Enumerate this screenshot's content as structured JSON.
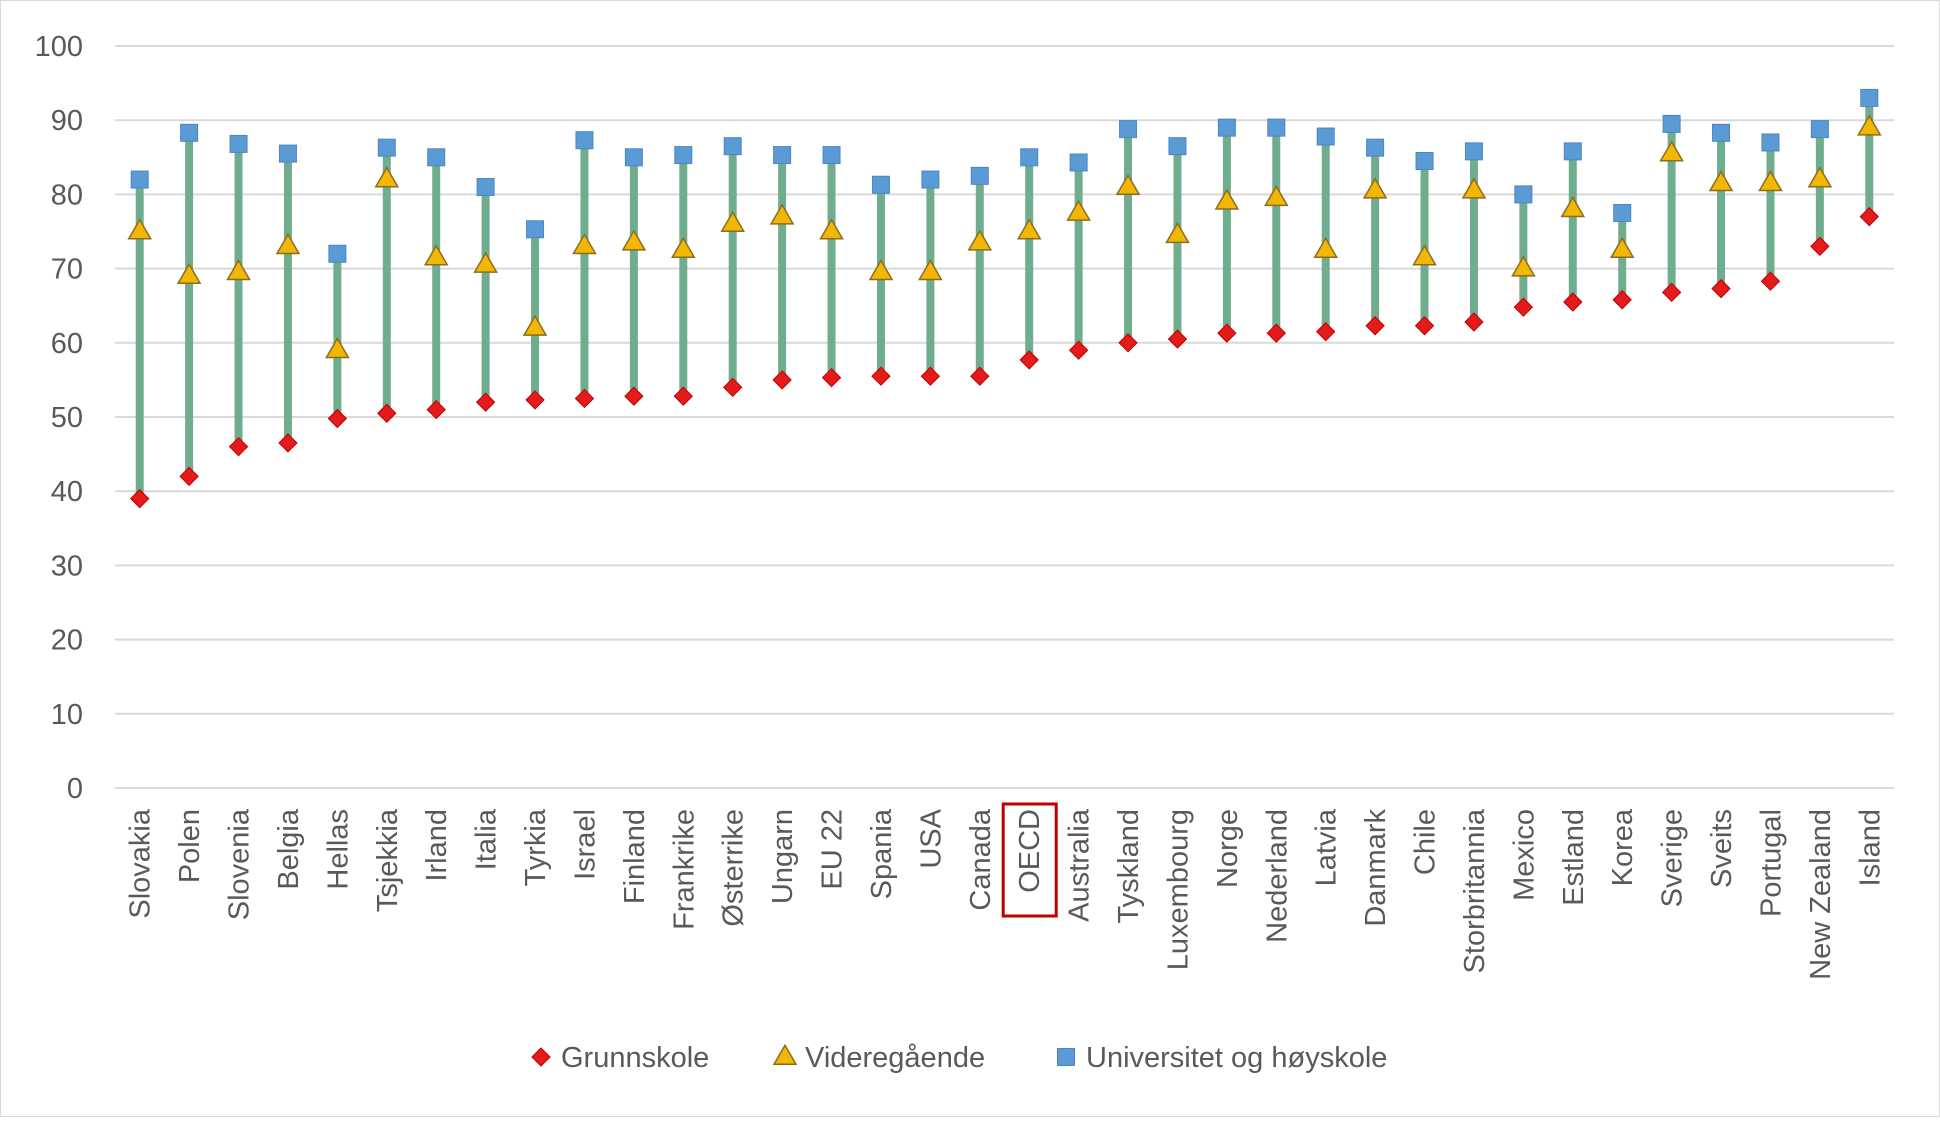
{
  "chart_data": {
    "type": "line",
    "categories": [
      "Slovakia",
      "Polen",
      "Slovenia",
      "Belgia",
      "Hellas",
      "Tsjekkia",
      "Irland",
      "Italia",
      "Tyrkia",
      "Israel",
      "Finland",
      "Frankrike",
      "Østerrike",
      "Ungarn",
      "EU 22",
      "Spania",
      "USA",
      "Canada",
      "OECD",
      "Australia",
      "Tyskland",
      "Luxembourg",
      "Norge",
      "Nederland",
      "Latvia",
      "Danmark",
      "Chile",
      "Storbritannia",
      "Mexico",
      "Estland",
      "Korea",
      "Sverige",
      "Sveits",
      "Portugal",
      "New Zealand",
      "Island"
    ],
    "highlighted_category": "OECD",
    "series": [
      {
        "name": "Grunnskole",
        "marker": "diamond",
        "color": "#e31b1b",
        "values": [
          39,
          42,
          46,
          46.5,
          49.8,
          50.5,
          51,
          52,
          52.3,
          52.5,
          52.8,
          52.8,
          54,
          55,
          55.3,
          55.5,
          55.5,
          55.5,
          57.7,
          59,
          60,
          60.5,
          61.3,
          61.3,
          61.5,
          62.3,
          62.3,
          62.8,
          64.8,
          65.5,
          65.8,
          66.8,
          67.3,
          68.3,
          73,
          77
        ]
      },
      {
        "name": "Videregående",
        "marker": "triangle",
        "color": "#f2b705",
        "values": [
          75,
          69,
          69.5,
          73,
          59,
          82,
          71.5,
          70.5,
          62,
          73,
          73.5,
          72.5,
          76,
          77,
          75,
          69.5,
          69.5,
          73.5,
          75,
          77.5,
          81,
          74.5,
          79,
          79.5,
          72.5,
          80.5,
          71.5,
          80.5,
          70,
          78,
          72.5,
          85.5,
          81.5,
          81.5,
          82,
          89
        ]
      },
      {
        "name": "Universitet og høyskole",
        "marker": "square",
        "color": "#5b9bd5",
        "values": [
          82,
          88.3,
          86.8,
          85.5,
          72,
          86.3,
          85,
          81,
          75.3,
          87.3,
          85,
          85.3,
          86.5,
          85.3,
          85.3,
          81.3,
          82,
          82.5,
          85,
          84.3,
          88.8,
          86.5,
          89,
          89,
          87.8,
          86.3,
          84.5,
          85.8,
          80,
          85.8,
          77.5,
          89.5,
          88.3,
          87,
          88.8,
          93
        ]
      }
    ],
    "ylim": [
      0,
      100
    ],
    "yticks": [
      "0",
      "10",
      "20",
      "30",
      "40",
      "50",
      "60",
      "70",
      "80",
      "90",
      "100"
    ],
    "grid": true,
    "range_bar_color": "#70ad8e",
    "legend_position": "bottom"
  }
}
